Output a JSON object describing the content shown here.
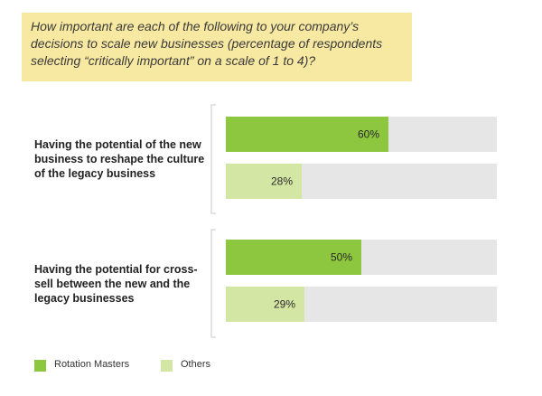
{
  "question": "How important are each of the following to your company’s decisions to scale new businesses (percentage of respondents selecting “critically important” on a scale of 1 to 4)?",
  "colors": {
    "rotation_masters": "#8dc63f",
    "others": "#d3e6a3",
    "track": "#e6e6e6",
    "question_bg": "#f8e9a2"
  },
  "chart_data": {
    "type": "bar",
    "orientation": "horizontal",
    "categories": [
      "Having the potential of the new business to reshape the culture of the legacy business",
      "Having the potential for cross-sell between the new and the legacy businesses"
    ],
    "series": [
      {
        "name": "Rotation Masters",
        "values": [
          60,
          50
        ]
      },
      {
        "name": "Others",
        "values": [
          28,
          29
        ]
      }
    ],
    "value_labels": [
      [
        "60%",
        "28%"
      ],
      [
        "50%",
        "29%"
      ]
    ],
    "xlim": [
      0,
      100
    ],
    "legend_placement": "bottom-left",
    "grid": false
  },
  "legend": [
    {
      "label": "Rotation Masters",
      "color": "#8dc63f"
    },
    {
      "label": "Others",
      "color": "#d3e6a3"
    }
  ]
}
